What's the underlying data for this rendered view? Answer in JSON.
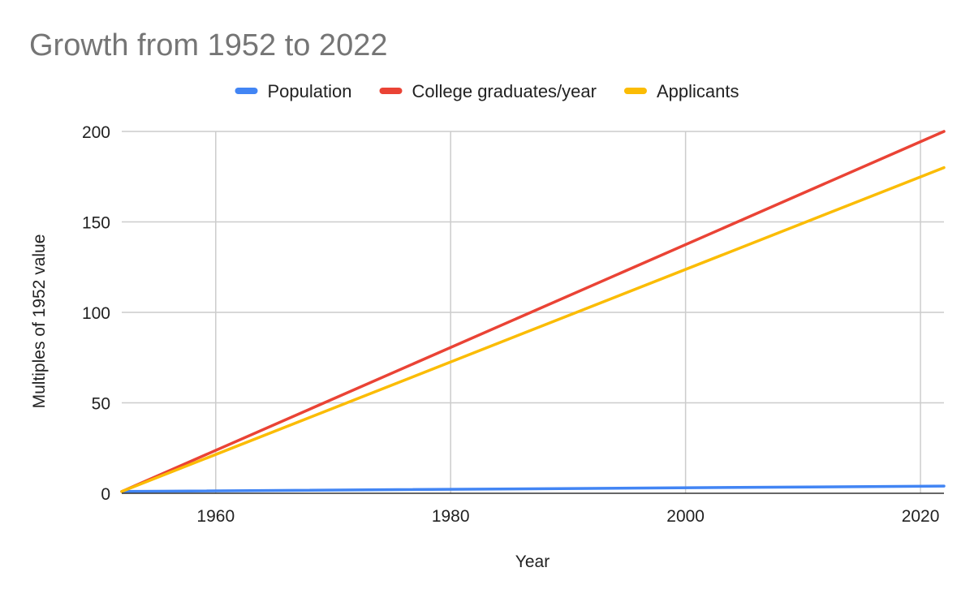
{
  "chart_data": {
    "type": "line",
    "title": "Growth from 1952 to 2022",
    "xlabel": "Year",
    "ylabel": "Multiples of 1952 value",
    "xlim": [
      1952,
      2022
    ],
    "ylim": [
      0,
      200
    ],
    "x_ticks": [
      1960,
      1980,
      2000,
      2020
    ],
    "x_tick_labels": [
      "1960",
      "1980",
      "2000",
      "2020"
    ],
    "y_ticks": [
      0,
      50,
      100,
      150,
      200
    ],
    "y_tick_labels": [
      "0",
      "50",
      "100",
      "150",
      "200"
    ],
    "grid": true,
    "legend_position": "top",
    "x": [
      1952,
      2022
    ],
    "series": [
      {
        "name": "Population",
        "color": "#4285F4",
        "values": [
          1,
          4
        ]
      },
      {
        "name": "College graduates/year",
        "color": "#EA4335",
        "values": [
          1,
          200
        ]
      },
      {
        "name": "Applicants",
        "color": "#FBBC04",
        "values": [
          1,
          180
        ]
      }
    ]
  }
}
